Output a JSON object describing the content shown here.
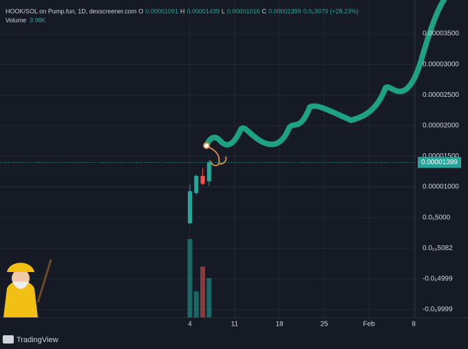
{
  "chart_data": {
    "type": "candlestick",
    "symbol": "HOOK/SOL on Pump.fun, 1D, dexscreener.com",
    "ohlc_letters": [
      "O",
      "H",
      "L",
      "C"
    ],
    "change": "0.0₅3079 (+28.23%)",
    "volume_title": "Volume",
    "x": [
      0,
      1,
      2,
      3
    ],
    "open": [
      4.06e-06,
      9e-06,
      1.18e-05,
      1.091e-05
    ],
    "high": [
      1.04e-05,
      1.2e-05,
      1.31e-05,
      1.439e-05
    ],
    "low": [
      3.9e-06,
      8.7e-06,
      1.03e-05,
      1.016e-05
    ],
    "close": [
      9.3e-06,
      1.18e-05,
      1.05e-05,
      1.399e-05
    ],
    "up_color": "#26a69a",
    "down_color": "#ef5350",
    "volume": {
      "values": [
        7960,
        2650,
        5170,
        3980
      ],
      "value_labels": [
        null,
        null,
        null,
        "3.98K"
      ]
    },
    "xlim": [
      -29.7,
      35.2
    ],
    "xticks": [
      {
        "value": 0,
        "label": "4"
      },
      {
        "value": 7,
        "label": "11"
      },
      {
        "value": 14,
        "label": "18"
      },
      {
        "value": 21,
        "label": "25"
      },
      {
        "value": 28,
        "label": "Feb"
      },
      {
        "value": 35,
        "label": "8"
      }
    ],
    "ylim": [
      -1.13e-05,
      4.05e-05
    ],
    "yticks": [
      {
        "value": 3.5e-05,
        "label": "0.00003500"
      },
      {
        "value": 3e-05,
        "label": "0.00003000"
      },
      {
        "value": 2.5e-05,
        "label": "0.00002500"
      },
      {
        "value": 2e-05,
        "label": "0.00002000"
      },
      {
        "value": 1.5e-05,
        "label": "0.00001500"
      },
      {
        "value": 1e-05,
        "label": "0.00001000"
      },
      {
        "value": 5e-06,
        "label": "0.0₅5000"
      },
      {
        "value": 5.082e-11,
        "label": "0.0₁₀5082"
      },
      {
        "value": -4.999e-06,
        "label": "-0.0₅4999"
      },
      {
        "value": -9.999e-06,
        "label": "-0.0₅9999"
      }
    ],
    "grid": true,
    "brand": "TradingView"
  }
}
